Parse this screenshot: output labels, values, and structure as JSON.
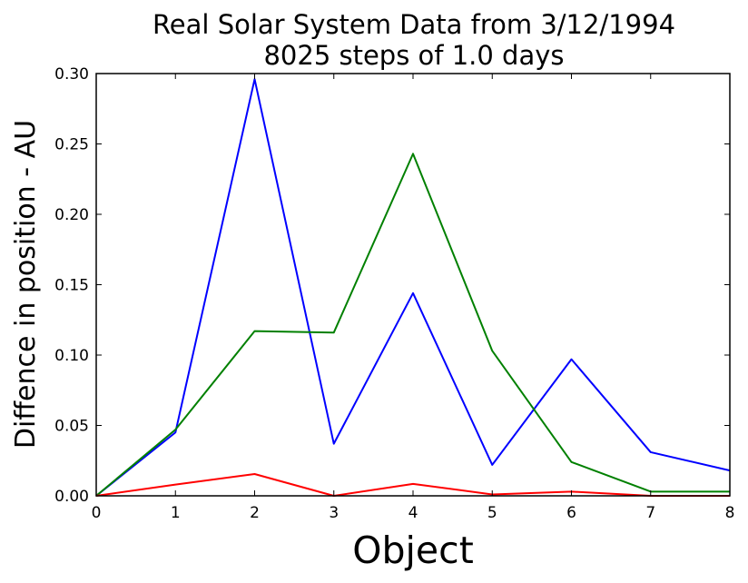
{
  "chart_data": {
    "type": "line",
    "title_lines": [
      "Real Solar System Data from 3/12/1994",
      "8025 steps of 1.0 days"
    ],
    "xlabel": "Object",
    "ylabel": "Diffence in position - AU",
    "xlim": [
      0,
      8
    ],
    "ylim": [
      0,
      0.3
    ],
    "x": [
      0,
      1,
      2,
      3,
      4,
      5,
      6,
      7,
      8
    ],
    "x_ticks": [
      0,
      1,
      2,
      3,
      4,
      5,
      6,
      7,
      8
    ],
    "x_tick_labels": [
      "0",
      "1",
      "2",
      "3",
      "4",
      "5",
      "6",
      "7",
      "8"
    ],
    "y_ticks": [
      0,
      0.05,
      0.1,
      0.15,
      0.2,
      0.25,
      0.3
    ],
    "y_tick_labels": [
      "0.00",
      "0.05",
      "0.10",
      "0.15",
      "0.20",
      "0.25",
      "0.30"
    ],
    "grid": false,
    "series": [
      {
        "color": "#0000ff",
        "values": [
          0,
          0.045,
          0.296,
          0.037,
          0.144,
          0.022,
          0.097,
          0.031,
          0.018
        ]
      },
      {
        "color": "#008000",
        "values": [
          0,
          0.047,
          0.117,
          0.116,
          0.243,
          0.103,
          0.024,
          0.003,
          0.003
        ]
      },
      {
        "color": "#ff0000",
        "values": [
          0,
          0.008,
          0.0155,
          0,
          0.0085,
          0.001,
          0.003,
          0,
          0
        ]
      }
    ]
  }
}
